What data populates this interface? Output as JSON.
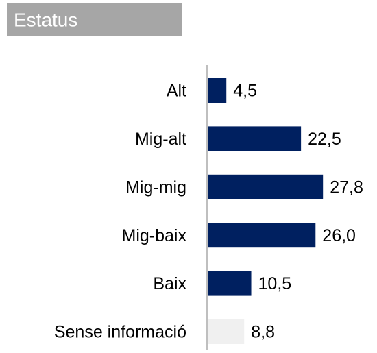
{
  "chart_data": {
    "type": "hbar",
    "title": "Estatus",
    "categories": [
      "Alt",
      "Mig-alt",
      "Mig-mig",
      "Mig-baix",
      "Baix",
      "Sense informació"
    ],
    "values": [
      4.5,
      22.5,
      27.8,
      26.0,
      10.5,
      8.8
    ],
    "value_labels": [
      "4,5",
      "22,5",
      "27,8",
      "26,0",
      "10,5",
      "8,8"
    ],
    "colors": [
      "#002060",
      "#002060",
      "#002060",
      "#002060",
      "#002060",
      "#f0f0f0"
    ]
  }
}
